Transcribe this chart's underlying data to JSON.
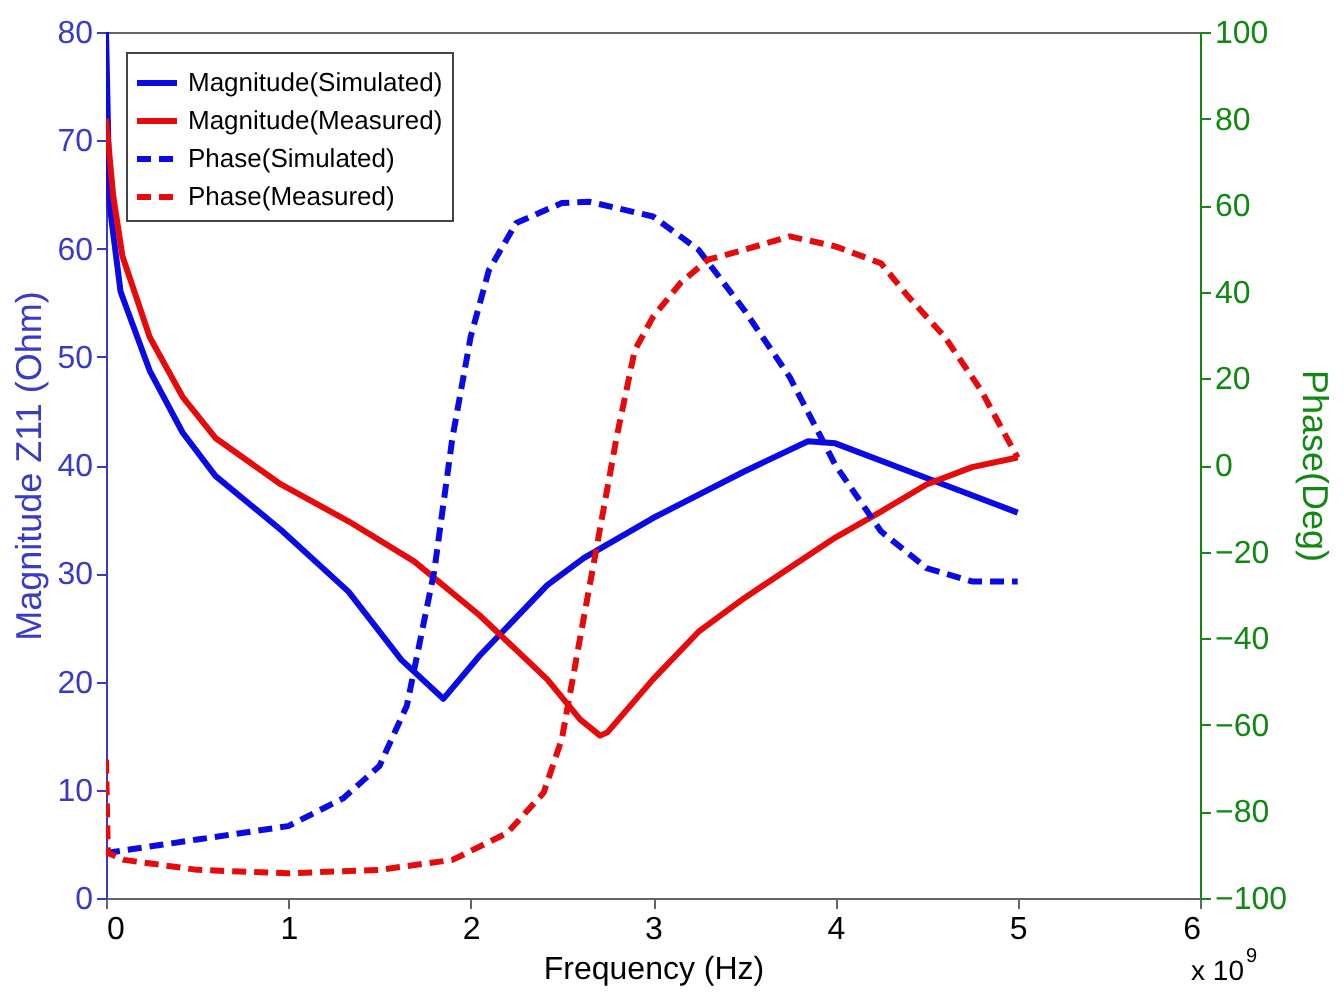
{
  "chart_data": {
    "type": "line",
    "xlabel": "Frequency (Hz)",
    "ylabel": "Magnitude Z11 (Ohm)",
    "y2label": "Phase(Deg)",
    "xlim": [
      0,
      6
    ],
    "xticks": [
      0,
      1,
      2,
      3,
      4,
      5,
      6
    ],
    "ylim": [
      0,
      80
    ],
    "yticks": [
      0,
      10,
      20,
      30,
      40,
      50,
      60,
      70,
      80
    ],
    "y2lim": [
      -100,
      100
    ],
    "y2ticks": [
      -100,
      -80,
      -60,
      -40,
      -20,
      0,
      20,
      40,
      60,
      80,
      100
    ],
    "grid": false,
    "legend": "top left",
    "annotations": [
      "x 10$^{9}$"
    ],
    "series": [
      {
        "name": "Magnitude(Simulated)",
        "color": "#0a0ae6",
        "line_style": "solid",
        "x": [
          0,
          0.02,
          0.08,
          0.24,
          0.42,
          0.6,
          0.96,
          1.33,
          1.62,
          1.85,
          2.05,
          2.42,
          2.62,
          3,
          3.5,
          3.85,
          4,
          4.5,
          5
        ],
        "values": [
          80,
          64,
          56,
          48.7,
          43,
          39,
          34,
          28.3,
          22,
          18.4,
          22.4,
          28.9,
          31.4,
          35.1,
          39.4,
          42.2,
          42,
          38.8,
          35.6
        ]
      },
      {
        "name": "Magnitude(Measured)",
        "color": "#e60a0a",
        "line_style": "solid",
        "x": [
          0,
          0.04,
          0.09,
          0.24,
          0.42,
          0.6,
          0.96,
          1.33,
          1.69,
          2.05,
          2.42,
          2.6,
          2.71,
          2.75,
          3,
          3.25,
          3.5,
          3.75,
          4,
          4.25,
          4.5,
          4.75,
          5
        ],
        "values": [
          72,
          64.8,
          59.3,
          51.8,
          46.3,
          42.5,
          38.2,
          34.8,
          31.1,
          26.1,
          20.2,
          16.5,
          15,
          15.3,
          20.2,
          24.6,
          27.7,
          30.5,
          33.3,
          35.7,
          38.2,
          39.8,
          40.7
        ]
      },
      {
        "name": "Phase(Simulated)",
        "color": "#0a0ae6",
        "line_style": "dashed",
        "axis": "y2",
        "x": [
          0,
          0.5,
          1,
          1.3,
          1.5,
          1.65,
          1.8,
          1.9,
          2,
          2.1,
          2.25,
          2.5,
          2.65,
          3,
          3.25,
          3.5,
          3.75,
          4,
          4.25,
          4.5,
          4.75,
          5
        ],
        "values": [
          -89.6,
          -86.5,
          -83.4,
          -77,
          -69.5,
          -55.6,
          -24.6,
          6.3,
          29.6,
          45,
          55.9,
          60.5,
          60.8,
          57.4,
          49.7,
          35.8,
          20.3,
          0,
          -15.3,
          -23.8,
          -26.9,
          -26.9
        ]
      },
      {
        "name": "Phase(Measured)",
        "color": "#e60a0a",
        "line_style": "dashed",
        "axis": "y2",
        "x": [
          0,
          0.01,
          0.1,
          0.5,
          1,
          1.5,
          1.9,
          2.2,
          2.4,
          2.5,
          2.6,
          2.7,
          2.8,
          2.9,
          3,
          3.15,
          3.3,
          3.5,
          3.75,
          4,
          4.25,
          4.4,
          4.6,
          4.8,
          4.9,
          5
        ],
        "values": [
          -68,
          -89.6,
          -91.2,
          -93.5,
          -94.3,
          -93.5,
          -91.2,
          -85,
          -75.7,
          -63.3,
          -40,
          -16.9,
          6.3,
          26.5,
          34.2,
          42,
          47.4,
          49.7,
          52.8,
          50.5,
          46.6,
          38.9,
          29.6,
          17.2,
          9.4,
          1.7
        ]
      }
    ]
  }
}
